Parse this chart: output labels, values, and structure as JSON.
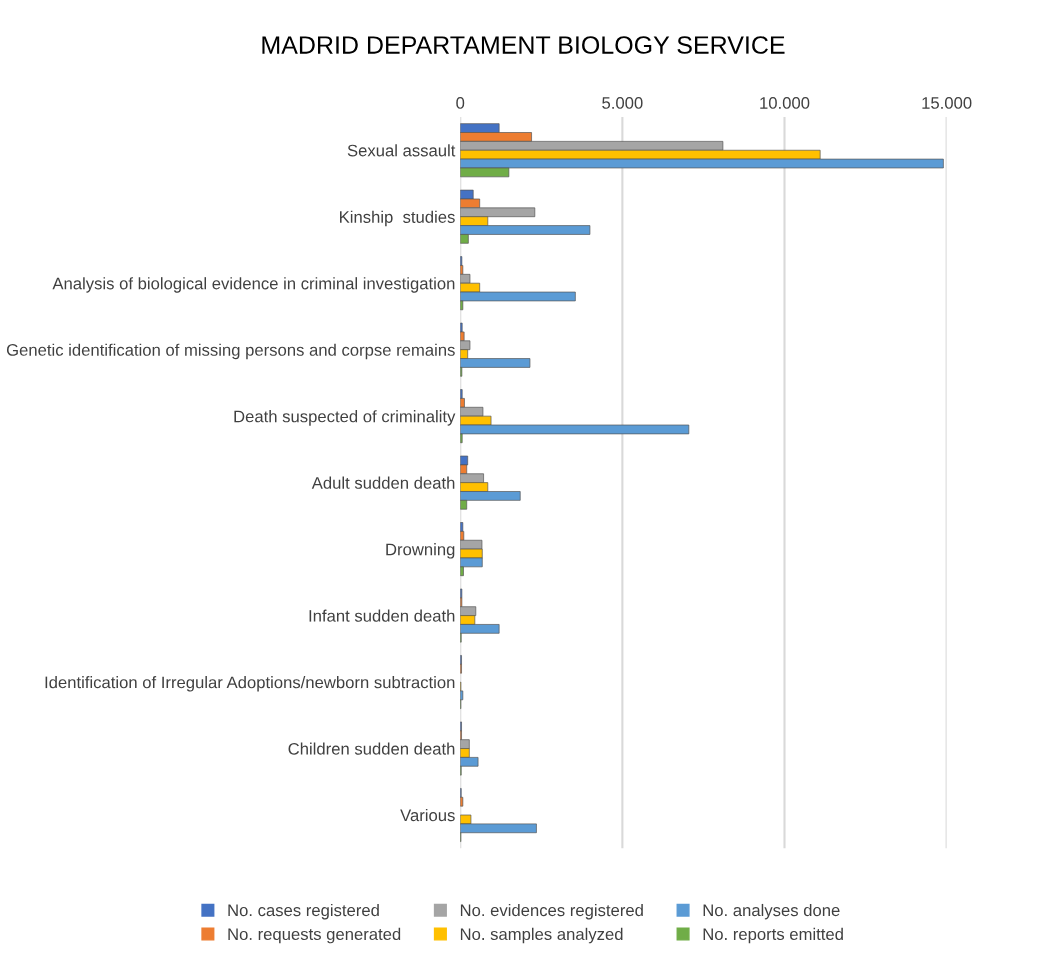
{
  "chart_data": {
    "type": "bar",
    "orientation": "horizontal",
    "title": "MADRID DEPARTAMENT BIOLOGY SERVICE",
    "categories": [
      "Sexual assault",
      "Kinship  studies",
      "Analysis of biological evidence in criminal investigation",
      "Genetic identification of missing persons and corpse remains",
      "Death suspected of criminality",
      "Adult sudden death",
      "Drowning",
      "Infant sudden death",
      "Identification of Irregular Adoptions/newborn subtraction",
      "Children sudden death",
      "Various"
    ],
    "series": [
      {
        "name": "No. cases registered",
        "color": "#4472c4",
        "values": [
          1200,
          400,
          50,
          60,
          60,
          230,
          80,
          50,
          40,
          40,
          30
        ]
      },
      {
        "name": "No. requests generated",
        "color": "#ed7d31",
        "values": [
          2200,
          600,
          80,
          120,
          130,
          200,
          110,
          50,
          40,
          40,
          80
        ]
      },
      {
        "name": "No. evidences registered",
        "color": "#a5a5a5",
        "values": [
          8100,
          2300,
          300,
          300,
          700,
          720,
          670,
          480,
          null,
          280,
          null
        ]
      },
      {
        "name": "No. samples analyzed",
        "color": "#ffc000",
        "values": [
          11100,
          850,
          600,
          230,
          950,
          850,
          680,
          450,
          20,
          280,
          330
        ]
      },
      {
        "name": "No. analyses done",
        "color": "#5b9bd5",
        "values": [
          14900,
          4000,
          3550,
          2150,
          7050,
          1850,
          680,
          1200,
          80,
          550,
          2350
        ]
      },
      {
        "name": "No. reports emitted",
        "color": "#70ad47",
        "values": [
          1500,
          250,
          80,
          50,
          60,
          200,
          100,
          30,
          20,
          30,
          20
        ]
      }
    ],
    "xlim": [
      0,
      15000
    ],
    "xticks": [
      {
        "value": 0,
        "label": "0"
      },
      {
        "value": 5000,
        "label": "5.000"
      },
      {
        "value": 10000,
        "label": "10.000"
      },
      {
        "value": 15000,
        "label": "15.000"
      }
    ],
    "grid": "x",
    "legend": "bottom"
  }
}
